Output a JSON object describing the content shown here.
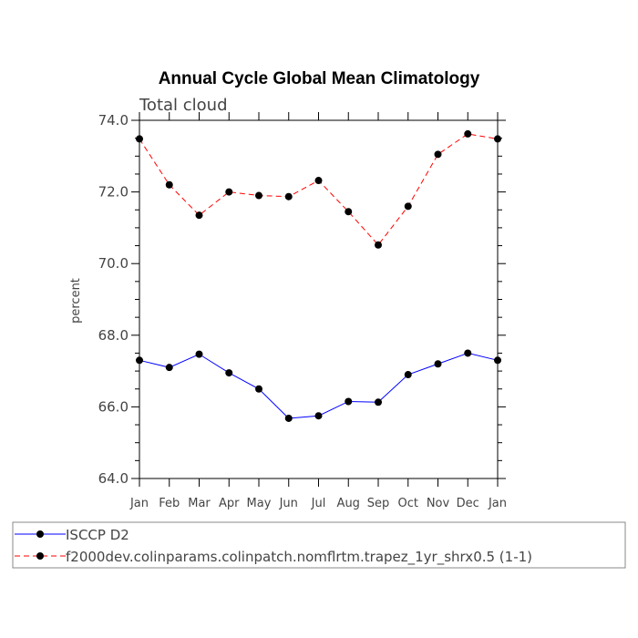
{
  "chart_data": {
    "type": "line",
    "title": "Annual Cycle Global Mean Climatology",
    "subtitle": "Total cloud",
    "xlabel": "",
    "ylabel": "percent",
    "categories": [
      "Jan",
      "Feb",
      "Mar",
      "Apr",
      "May",
      "Jun",
      "Jul",
      "Aug",
      "Sep",
      "Oct",
      "Nov",
      "Dec",
      "Jan"
    ],
    "ylim": [
      64.0,
      74.0
    ],
    "yticks": [
      "64.0",
      "66.0",
      "68.0",
      "70.0",
      "72.0",
      "74.0"
    ],
    "grid": false,
    "legend_position": "bottom",
    "series": [
      {
        "name": "ISCCP D2",
        "color": "#0000ff",
        "line_style": "solid",
        "marker": "filled-circle",
        "values": [
          67.3,
          67.1,
          67.47,
          66.95,
          66.5,
          65.68,
          65.75,
          66.15,
          66.13,
          66.9,
          67.2,
          67.5,
          67.3
        ]
      },
      {
        "name": "f2000dev.colinparams.colinpatch.nomflrtm.trapez_1yr_shrx0.5 (1-1)",
        "color": "#ff0000",
        "line_style": "dashed",
        "marker": "filled-circle",
        "values": [
          73.48,
          72.2,
          71.35,
          72.0,
          71.9,
          71.87,
          72.32,
          71.45,
          70.52,
          71.6,
          73.05,
          73.62,
          73.48
        ]
      }
    ]
  }
}
